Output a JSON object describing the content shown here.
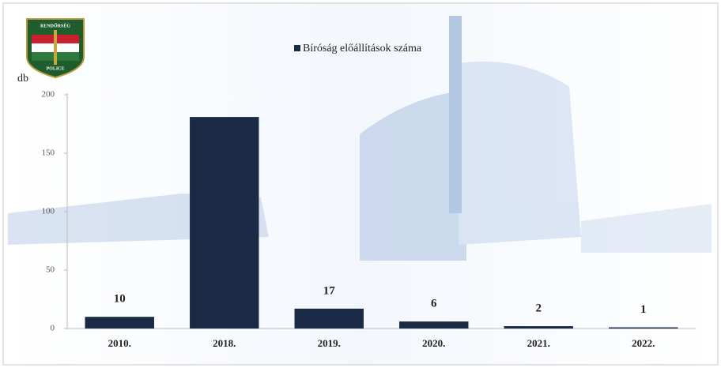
{
  "chart_data": {
    "type": "bar",
    "logo": {
      "top": "RENDŐRSÉG",
      "bottom": "POLICE"
    },
    "legend": "Bíróság előállítások száma",
    "ylabel": "db",
    "categories": [
      "2010.",
      "2018.",
      "2019.",
      "2020.",
      "2021.",
      "2022."
    ],
    "values": [
      10,
      181,
      17,
      6,
      2,
      1
    ],
    "value_labels": [
      "10",
      null,
      "17",
      "6",
      "2",
      "1"
    ],
    "color": "#1b2a44",
    "ylim": [
      0,
      200
    ],
    "yticks": [
      0,
      50,
      100,
      150,
      200
    ],
    "grid": false
  }
}
